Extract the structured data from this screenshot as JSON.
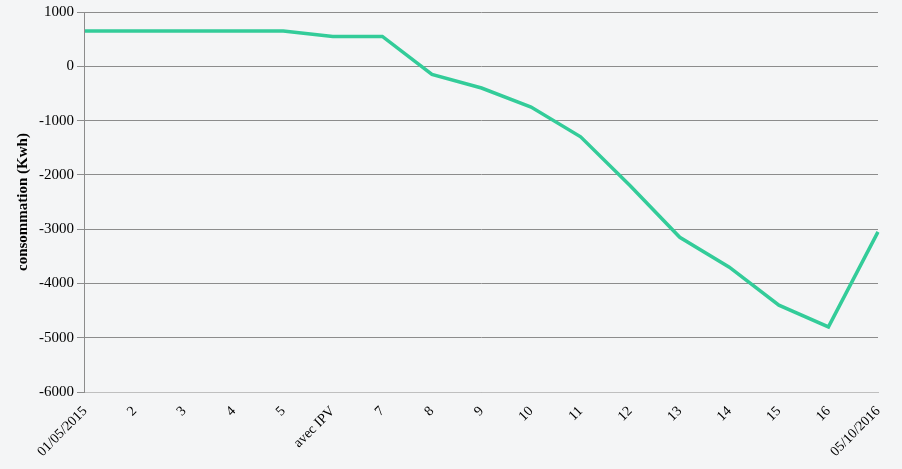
{
  "chart_data": {
    "type": "line",
    "y_label": "consommation (Kwh)",
    "categories": [
      "01/05/2015",
      "2",
      "3",
      "4",
      "5",
      "avec IPV",
      "7",
      "8",
      "9",
      "10",
      "11",
      "12",
      "13",
      "14",
      "15",
      "16",
      "05/10/2016"
    ],
    "values": [
      650,
      650,
      650,
      650,
      650,
      550,
      550,
      -150,
      -400,
      -750,
      -1300,
      -2200,
      -3150,
      -3700,
      -4400,
      -4800,
      -3050
    ],
    "color": "#33cc99",
    "ylim": [
      -6000,
      1000
    ],
    "yticks": [
      -6000,
      -5000,
      -4000,
      -3000,
      -2000,
      -1000,
      0,
      1000
    ],
    "grid": true
  }
}
